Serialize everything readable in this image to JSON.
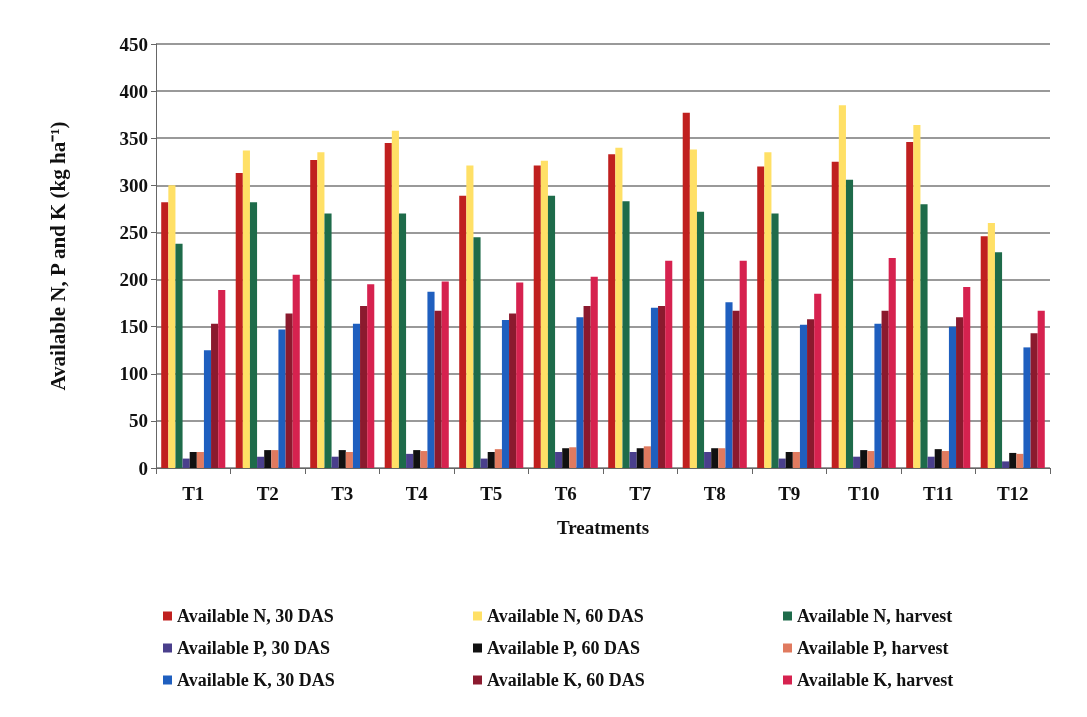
{
  "chart_data": {
    "type": "bar",
    "xlabel": "Treatments",
    "ylabel": "Available N, P and K (kg ha⁻¹)",
    "categories": [
      "T1",
      "T2",
      "T3",
      "T4",
      "T5",
      "T6",
      "T7",
      "T8",
      "T9",
      "T10",
      "T11",
      "T12"
    ],
    "ylim": [
      0,
      450
    ],
    "yticks": [
      0,
      50,
      100,
      150,
      200,
      250,
      300,
      350,
      400,
      450
    ],
    "grid": "y",
    "legend": "bottom",
    "series": [
      {
        "name": "Available N, 30 DAS",
        "color": "#c0201f",
        "values": [
          282,
          313,
          327,
          345,
          289,
          321,
          333,
          377,
          320,
          325,
          346,
          246
        ]
      },
      {
        "name": "Available N, 60 DAS",
        "color": "#ffe066",
        "values": [
          300,
          337,
          335,
          358,
          321,
          326,
          340,
          338,
          335,
          385,
          364,
          260
        ]
      },
      {
        "name": "Available N, harvest",
        "color": "#1e6b4a",
        "values": [
          238,
          282,
          270,
          270,
          245,
          289,
          283,
          272,
          270,
          306,
          280,
          229
        ]
      },
      {
        "name": "Available P, 30 DAS",
        "color": "#4a3f8c",
        "values": [
          10,
          12,
          12,
          15,
          10,
          17,
          17,
          17,
          10,
          12,
          12,
          7
        ]
      },
      {
        "name": "Available P, 60 DAS",
        "color": "#111111",
        "values": [
          17,
          19,
          19,
          19,
          17,
          21,
          21,
          21,
          17,
          19,
          20,
          16
        ]
      },
      {
        "name": "Available P, harvest",
        "color": "#e07a5f",
        "values": [
          17,
          19,
          17,
          18,
          20,
          22,
          23,
          21,
          17,
          18,
          18,
          15
        ]
      },
      {
        "name": "Available K, 30 DAS",
        "color": "#1f5fbf",
        "values": [
          125,
          147,
          153,
          187,
          157,
          160,
          170,
          176,
          152,
          153,
          150,
          128
        ]
      },
      {
        "name": "Available K, 60 DAS",
        "color": "#8b1a2e",
        "values": [
          153,
          164,
          172,
          167,
          164,
          172,
          172,
          167,
          158,
          167,
          160,
          143
        ]
      },
      {
        "name": "Available K, harvest",
        "color": "#d6224f",
        "values": [
          189,
          205,
          195,
          198,
          197,
          203,
          220,
          220,
          185,
          223,
          192,
          167
        ]
      }
    ]
  }
}
